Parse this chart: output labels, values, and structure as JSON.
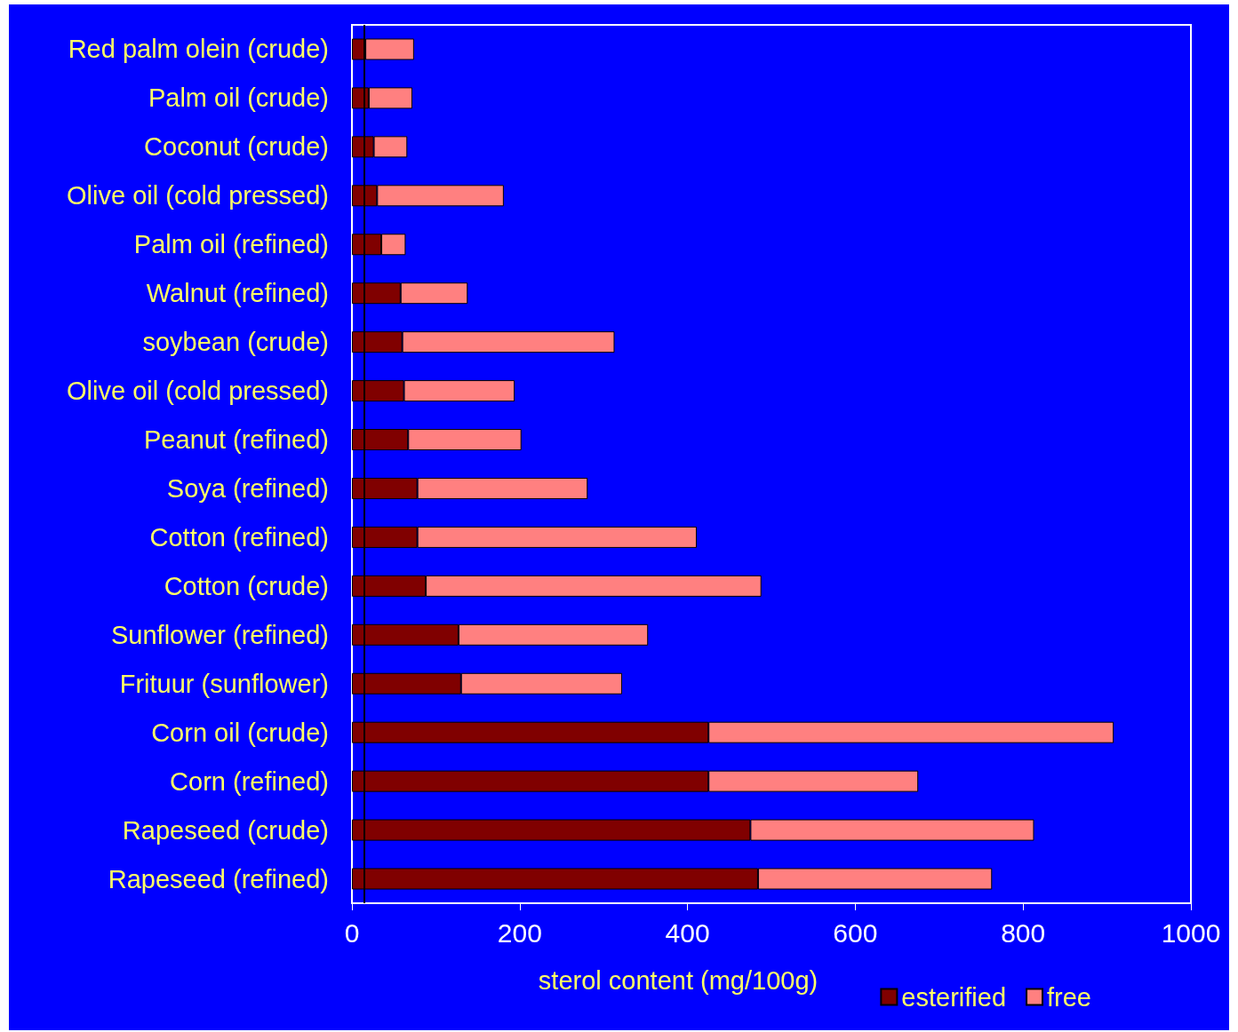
{
  "chart_data": {
    "type": "bar",
    "orientation": "horizontal",
    "stacked": true,
    "categories": [
      "Red palm olein (crude)",
      "Palm oil (crude)",
      "Coconut (crude)",
      "Olive oil (cold pressed)",
      "Palm oil (refined)",
      "Walnut (refined)",
      "soybean (crude)",
      "Olive oil (cold pressed)",
      "Peanut (refined)",
      "Soya (refined)",
      "Cotton (refined)",
      "Cotton (crude)",
      "Sunflower (refined)",
      "Frituur (sunflower)",
      "Corn oil (crude)",
      "Corn (refined)",
      "Rapeseed (crude)",
      "Rapeseed (refined)"
    ],
    "series": [
      {
        "name": "esterified",
        "color": "#800000",
        "values": [
          16,
          20,
          26,
          30,
          35,
          58,
          60,
          62,
          67,
          78,
          78,
          88,
          127,
          130,
          425,
          425,
          475,
          484
        ]
      },
      {
        "name": "free",
        "color": "#ff8080",
        "values": [
          58,
          52,
          40,
          151,
          29,
          80,
          253,
          132,
          135,
          203,
          333,
          400,
          226,
          192,
          483,
          250,
          338,
          279
        ]
      }
    ],
    "xlim": [
      0,
      1000
    ],
    "xticks": [
      0,
      200,
      400,
      600,
      800,
      1000
    ],
    "xlabel": "sterol content (mg/100g)",
    "legend": "bottom right",
    "grid": false,
    "ref_lines": [
      {
        "axis": "x",
        "value": 15,
        "color": "#000000"
      }
    ]
  }
}
